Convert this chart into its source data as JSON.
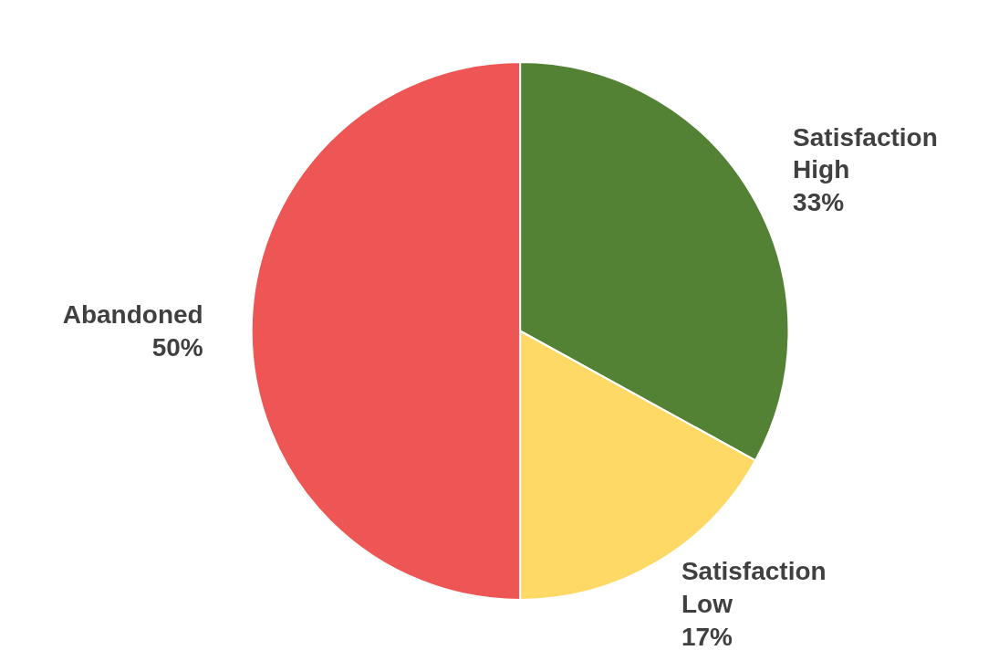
{
  "chart_data": {
    "type": "pie",
    "categories": [
      "Satisfaction High",
      "Satisfaction Low",
      "Abandoned"
    ],
    "values": [
      33,
      17,
      50
    ],
    "value_labels": [
      "33%",
      "17%",
      "50%"
    ],
    "colors": [
      "#548235",
      "#ffd966",
      "#ee5555"
    ]
  }
}
